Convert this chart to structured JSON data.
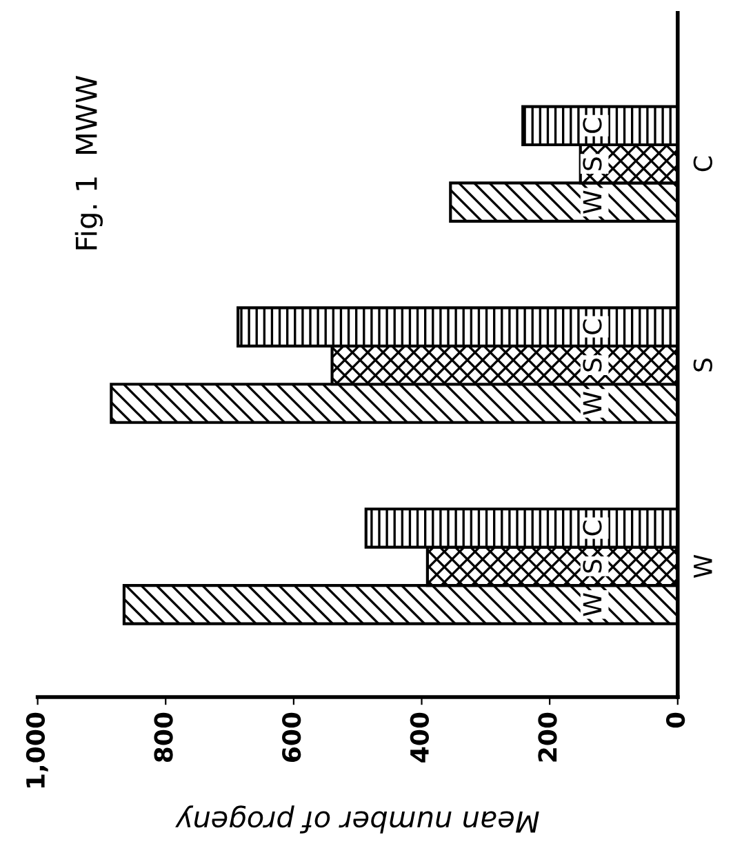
{
  "chart_data": {
    "type": "bar",
    "orientation": "horizontal",
    "title": "Fig. 1  MWW",
    "xlabel": "Mean number of progeny",
    "categories": [
      "C",
      "S",
      "W"
    ],
    "series": [
      {
        "name": "W",
        "color": "#000000",
        "values": [
          355,
          885,
          865
        ]
      },
      {
        "name": "S",
        "color": "#000000",
        "values": [
          152,
          540,
          391
        ]
      },
      {
        "name": "C",
        "color": "#000000",
        "values": [
          242,
          687,
          487
        ]
      }
    ],
    "xlim": [
      1000,
      0
    ],
    "xticks": [
      {
        "value": 1000,
        "label": "1,000"
      },
      800,
      600,
      400,
      200,
      0
    ],
    "grid": false,
    "legend": false
  }
}
